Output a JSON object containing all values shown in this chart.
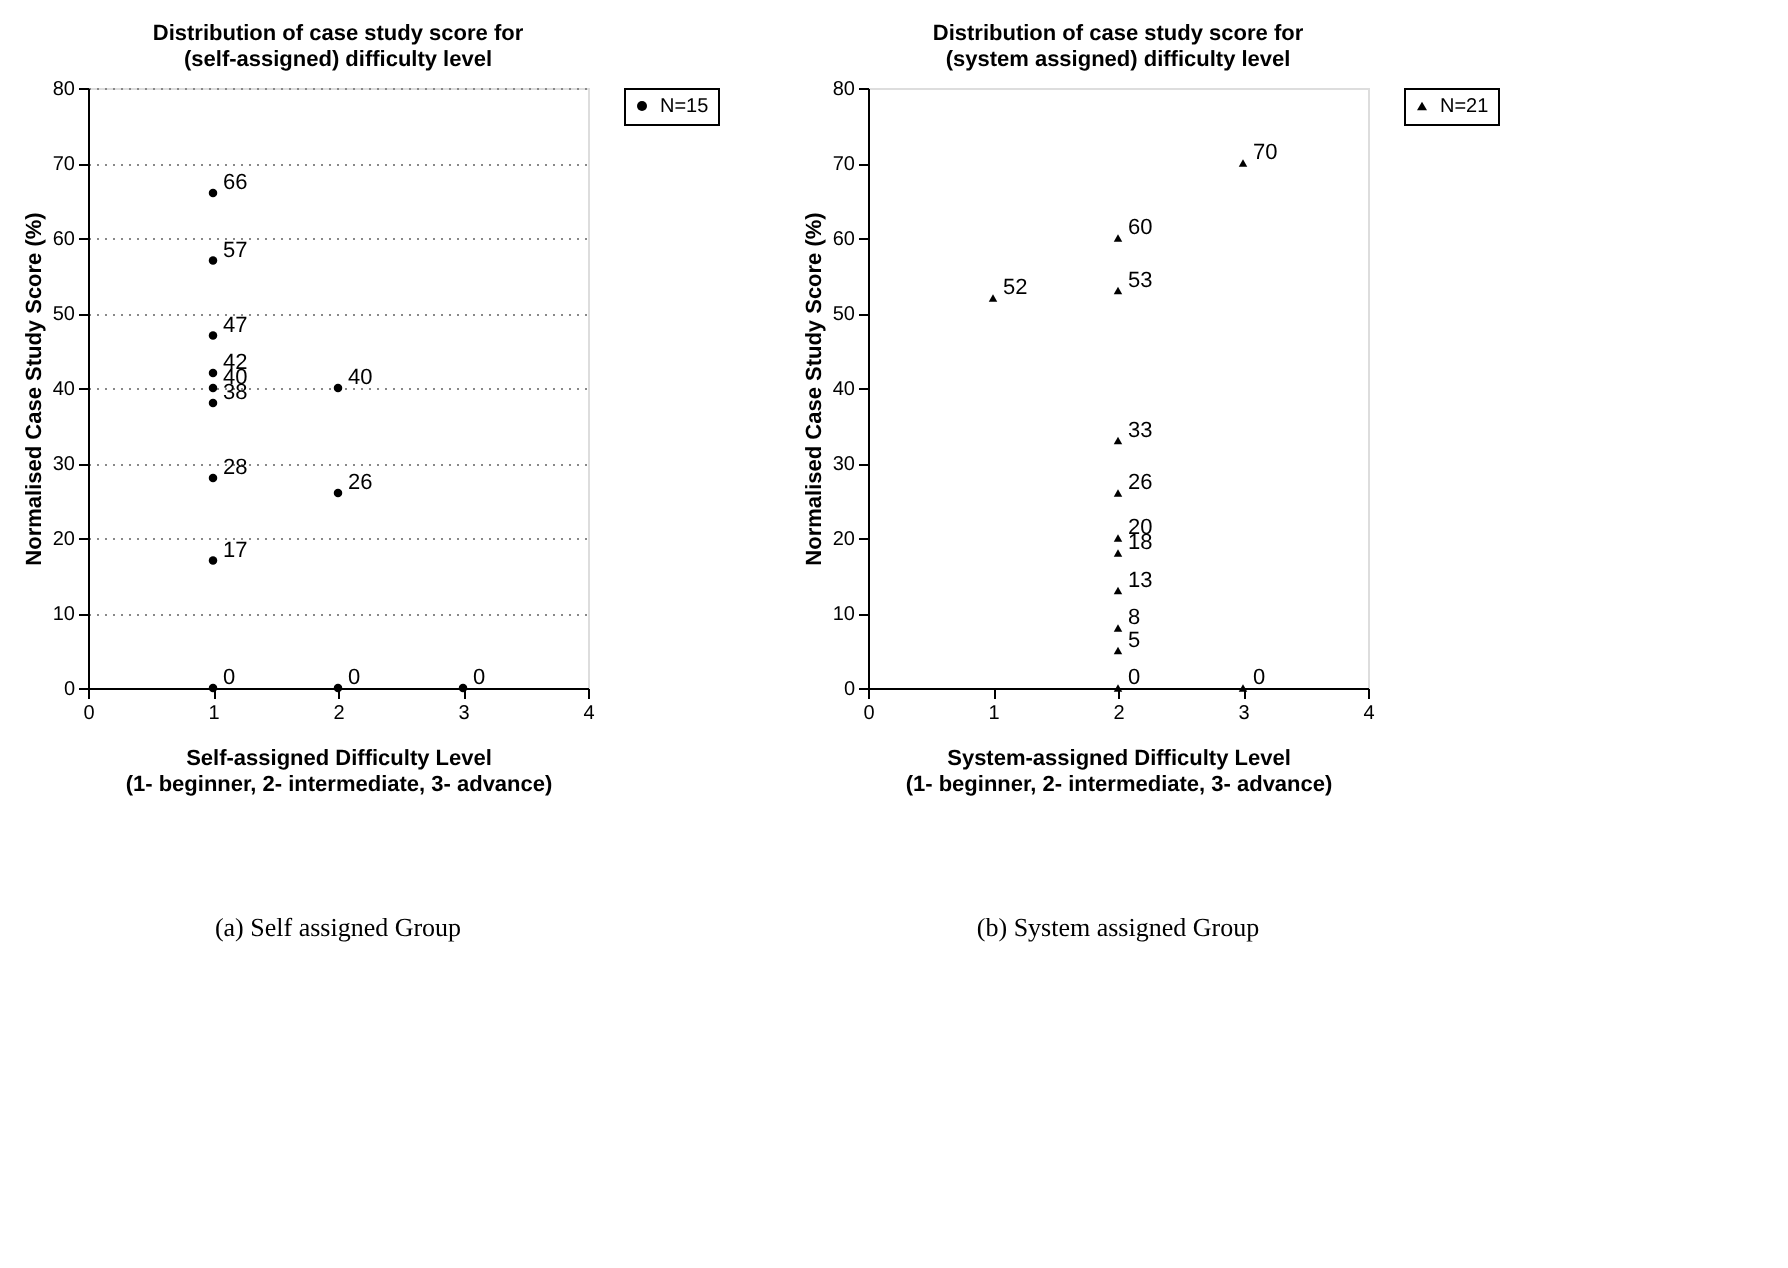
{
  "chart_data": [
    {
      "type": "scatter",
      "title": "Distribution of case study score for\n(self-assigned) difficulty level",
      "xlabel": "Self-assigned Difficulty Level\n(1- beginner, 2- intermediate, 3- advance)",
      "ylabel": "Normalised Case Study Score (%)",
      "series": [
        {
          "name": "N=15",
          "color": "#000000",
          "x": [
            1,
            1,
            1,
            1,
            1,
            1,
            1,
            1,
            1,
            2,
            2,
            2,
            3
          ],
          "values": [
            66,
            57,
            47,
            42,
            40,
            38,
            28,
            17,
            0,
            40,
            26,
            0,
            0
          ]
        }
      ],
      "xlim": [
        0,
        4
      ],
      "xticks": [
        0,
        1,
        2,
        3,
        4
      ],
      "ylim": [
        0,
        80
      ],
      "yticks": [
        0,
        10,
        20,
        30,
        40,
        50,
        60,
        70,
        80
      ],
      "data_labels": true,
      "grid": "y",
      "legend": "right",
      "marker": "circle",
      "annotations": [
        "(a) Self assigned Group"
      ]
    },
    {
      "type": "scatter",
      "title": "Distribution of case study score for\n(system assigned) difficulty level",
      "xlabel": "System-assigned Difficulty Level\n(1- beginner, 2- intermediate, 3- advance)",
      "ylabel": "Normalised Case Study Score (%)",
      "series": [
        {
          "name": "N=21",
          "color": "#000000",
          "x": [
            1,
            2,
            2,
            2,
            2,
            2,
            2,
            2,
            2,
            2,
            2,
            3,
            3
          ],
          "values": [
            52,
            60,
            53,
            33,
            26,
            20,
            18,
            13,
            8,
            5,
            0,
            70,
            0
          ]
        }
      ],
      "xlim": [
        0,
        4
      ],
      "xticks": [
        0,
        1,
        2,
        3,
        4
      ],
      "ylim": [
        0,
        80
      ],
      "yticks": [
        0,
        10,
        20,
        30,
        40,
        50,
        60,
        70,
        80
      ],
      "data_labels": true,
      "legend": "right",
      "marker": "triangle",
      "annotations": [
        "(b) System assigned Group"
      ]
    }
  ]
}
